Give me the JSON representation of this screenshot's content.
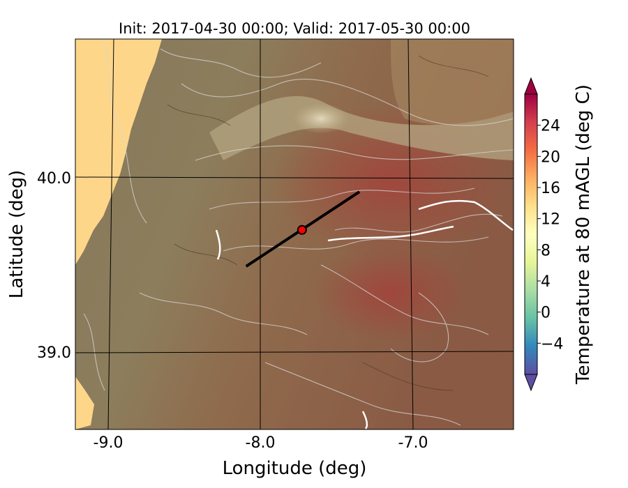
{
  "title": "Init: 2017-04-30 00:00; Valid: 2017-05-30 00:00",
  "x_axis": {
    "label": "Longitude (deg)",
    "ticks": [
      {
        "value": -9.0,
        "label": "-9.0"
      },
      {
        "value": -8.0,
        "label": "-8.0"
      },
      {
        "value": -7.0,
        "label": "-7.0"
      }
    ]
  },
  "y_axis": {
    "label": "Latitude (deg)",
    "ticks": [
      {
        "value": 40.0,
        "label": "40.0"
      },
      {
        "value": 39.0,
        "label": "39.0"
      }
    ]
  },
  "colorbar": {
    "label": "Temperature at 80 mAGL (deg C)",
    "range": [
      -8,
      28
    ],
    "ticks": [
      {
        "value": -4,
        "label": "−4"
      },
      {
        "value": 0,
        "label": "0"
      },
      {
        "value": 4,
        "label": "4"
      },
      {
        "value": 8,
        "label": "8"
      },
      {
        "value": 12,
        "label": "12"
      },
      {
        "value": 16,
        "label": "16"
      },
      {
        "value": 20,
        "label": "20"
      },
      {
        "value": 24,
        "label": "24"
      }
    ],
    "extend": "both",
    "colormap": "Spectral_r"
  },
  "map": {
    "lon_range": [
      -9.25,
      -6.35
    ],
    "lat_range": [
      38.55,
      40.8
    ],
    "marker": {
      "lon": -7.75,
      "lat": 39.7,
      "color": "#ff0000"
    },
    "cross_section_line": {
      "start": {
        "lon": -8.12,
        "lat": 39.49
      },
      "end": {
        "lon": -7.37,
        "lat": 39.92
      },
      "color": "#000000"
    },
    "ocean_color": "#fdd68a",
    "terrain_contours": true
  }
}
